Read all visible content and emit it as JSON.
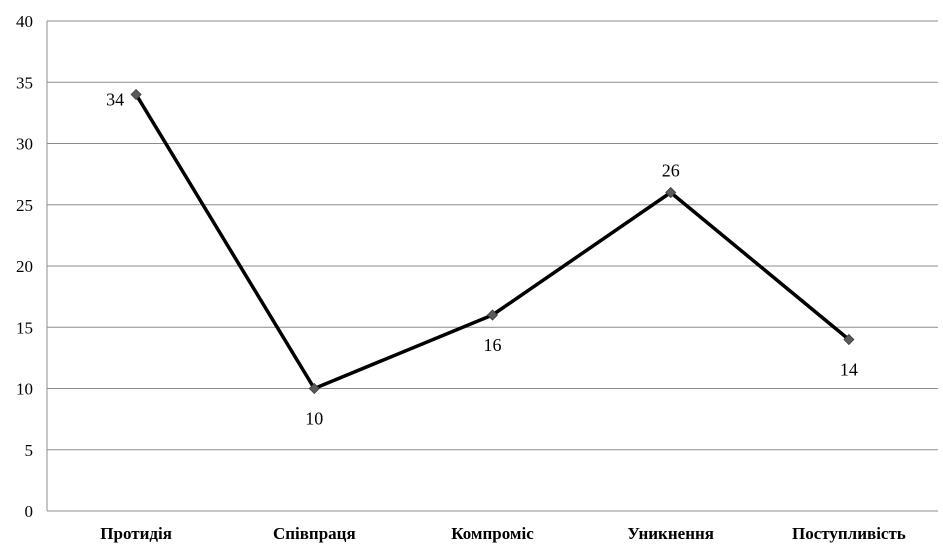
{
  "chart_data": {
    "type": "line",
    "categories": [
      "Протидія",
      "Співпраця",
      "Компроміс",
      "Уникнення",
      "Поступливість"
    ],
    "series": [
      {
        "values": [
          34,
          10,
          16,
          26,
          14
        ]
      }
    ],
    "data_labels": [
      "34",
      "10",
      "16",
      "26",
      "14"
    ],
    "data_label_position": [
      "left",
      "below",
      "below",
      "above",
      "below"
    ],
    "y_ticks": [
      0,
      5,
      10,
      15,
      20,
      25,
      30,
      35,
      40
    ],
    "ylim": [
      0,
      40
    ],
    "grid": true,
    "legend": "none",
    "line_color": "#000000",
    "marker_color": "#5a5a5a",
    "grid_color": "#8c8c8c"
  }
}
